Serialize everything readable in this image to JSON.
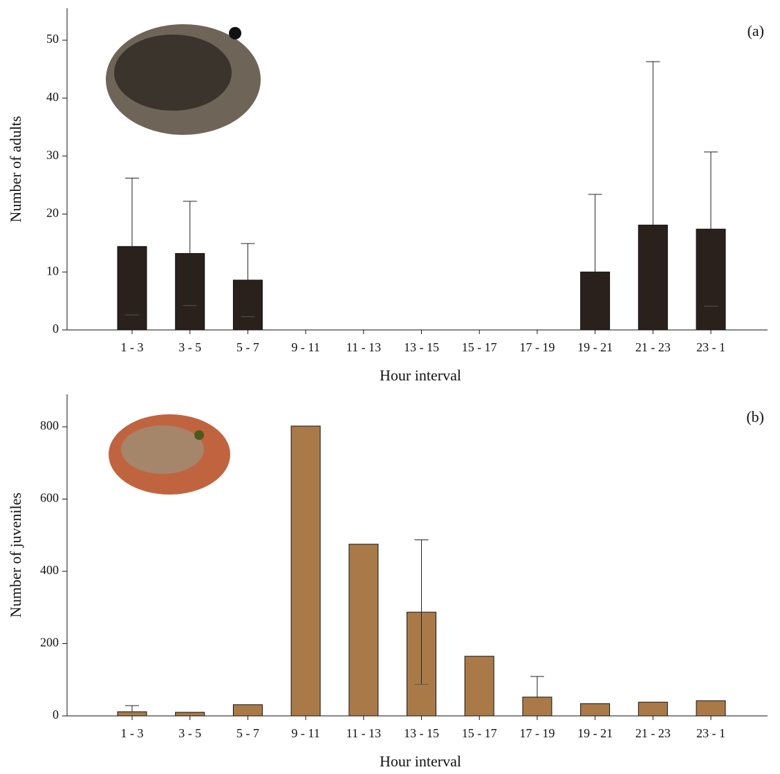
{
  "chart_data": [
    {
      "type": "bar",
      "annotation": "(a)",
      "x_label": "Hour interval",
      "y_label": "Number  of adults",
      "categories": [
        "1 - 3",
        "3 - 5",
        "5 - 7",
        "9 - 11",
        "11 - 13",
        "13 - 15",
        "15 - 17",
        "17 - 19",
        "19 - 21",
        "21 - 23",
        "23 - 1"
      ],
      "values": [
        14.4,
        13.2,
        8.6,
        0,
        0,
        0,
        0,
        0,
        10.0,
        18.1,
        17.4
      ],
      "errors": [
        11.8,
        9.0,
        6.3,
        0,
        0,
        0,
        0,
        0,
        13.4,
        28.2,
        13.3
      ],
      "color": "#2a211d",
      "ylim": [
        0,
        55.5
      ],
      "yticks": [
        0,
        10,
        20,
        30,
        40,
        50
      ]
    },
    {
      "type": "bar",
      "annotation": "(b)",
      "x_label": "Hour interval",
      "y_label": "Number of juveniles",
      "categories": [
        "1 - 3",
        "3 - 5",
        "5 - 7",
        "9 - 11",
        "11 - 13",
        "13 - 15",
        "15 - 17",
        "17 - 19",
        "19 - 21",
        "21 - 23",
        "23 - 1"
      ],
      "values": [
        11.5,
        10,
        31,
        802,
        475,
        287,
        165,
        52,
        34,
        38,
        42
      ],
      "errors": [
        17,
        0,
        0,
        0,
        0,
        200,
        0,
        57,
        0,
        0,
        0
      ],
      "color": "#a97a48",
      "ylim": [
        0,
        890
      ],
      "yticks": [
        0,
        200,
        400,
        600,
        800
      ]
    }
  ]
}
